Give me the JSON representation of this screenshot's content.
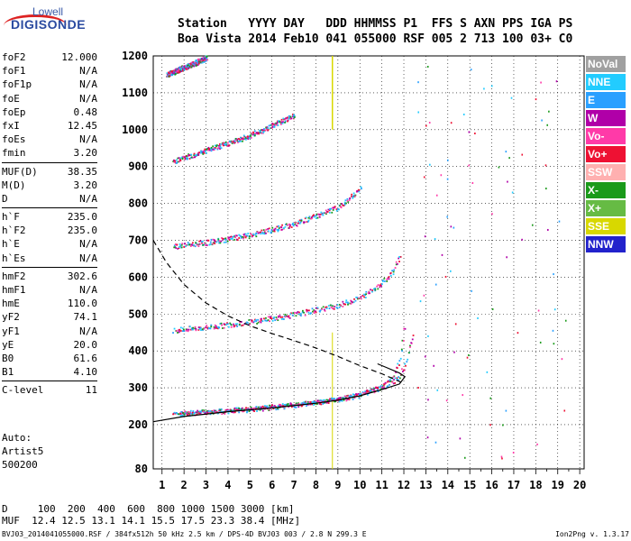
{
  "logo": {
    "line1": "Lowell",
    "line2": "DIGISONDE"
  },
  "header": {
    "line1": "Station   YYYY DAY   DDD HHMMSS P1  FFS S AXN PPS IGA PS",
    "line2": "Boa Vista 2014 Feb10 041 055000 RSF 005 2 713 100 03+ C0"
  },
  "params": [
    [
      {
        "k": "foF2",
        "v": "12.000"
      },
      {
        "k": "foF1",
        "v": "N/A"
      },
      {
        "k": "foF1p",
        "v": "N/A"
      },
      {
        "k": "foE",
        "v": "N/A"
      },
      {
        "k": "foEp",
        "v": "0.48"
      },
      {
        "k": "fxI",
        "v": "12.45"
      },
      {
        "k": "foEs",
        "v": "N/A"
      },
      {
        "k": "fmin",
        "v": "3.20"
      }
    ],
    [
      {
        "k": "MUF(D)",
        "v": "38.35"
      },
      {
        "k": "M(D)",
        "v": "3.20"
      },
      {
        "k": "D",
        "v": "N/A"
      }
    ],
    [
      {
        "k": "h`F",
        "v": "235.0"
      },
      {
        "k": "h`F2",
        "v": "235.0"
      },
      {
        "k": "h`E",
        "v": "N/A"
      },
      {
        "k": "h`Es",
        "v": "N/A"
      }
    ],
    [
      {
        "k": "hmF2",
        "v": "302.6"
      },
      {
        "k": "hmF1",
        "v": "N/A"
      },
      {
        "k": "hmE",
        "v": "110.0"
      },
      {
        "k": "yF2",
        "v": "74.1"
      },
      {
        "k": "yF1",
        "v": "N/A"
      },
      {
        "k": "yE",
        "v": "20.0"
      },
      {
        "k": "B0",
        "v": "61.6"
      },
      {
        "k": "B1",
        "v": "4.10"
      }
    ],
    [
      {
        "k": "C-level",
        "v": "11"
      }
    ]
  ],
  "notes": {
    "l1": "Auto:",
    "l2": "Artist5",
    "l3": "500200"
  },
  "bottom": {
    "d_line": "D     100  200  400  600  800 1000 1500 3000 [km]",
    "muf_line": "MUF  12.4 12.5 13.1 14.1 15.5 17.5 23.3 38.4 [MHz]"
  },
  "footer": {
    "left": "BVJ03_2014041055000.RSF / 384fx512h 50 kHz 2.5 km / DPS-4D BVJ03 003 / 2.8 N 299.3 E",
    "right": "Ion2Png v. 1.3.17"
  },
  "legend": [
    {
      "label": "NoVal",
      "color": "#a0a0a0"
    },
    {
      "label": "NNE",
      "color": "#22ccff"
    },
    {
      "label": "E",
      "color": "#2aa0ff"
    },
    {
      "label": "W",
      "color": "#b000a8"
    },
    {
      "label": "Vo-",
      "color": "#ff3aa8"
    },
    {
      "label": "Vo+",
      "color": "#ee1133"
    },
    {
      "label": "SSW",
      "color": "#ffb0b0"
    },
    {
      "label": "X-",
      "color": "#1a9a1a"
    },
    {
      "label": "X+",
      "color": "#66bb44"
    },
    {
      "label": "SSE",
      "color": "#d8d800"
    },
    {
      "label": "NNW",
      "color": "#2222cc"
    }
  ],
  "chart_data": {
    "type": "scatter",
    "xlim": [
      0.6,
      20.2
    ],
    "ylim": [
      80,
      1200
    ],
    "x_ticks": [
      1,
      2,
      3,
      4,
      5,
      6,
      7,
      8,
      9,
      10,
      11,
      12,
      13,
      14,
      15,
      16,
      17,
      18,
      19,
      20
    ],
    "y_ticks": [
      80,
      200,
      300,
      400,
      500,
      600,
      700,
      800,
      900,
      1000,
      1100,
      1200
    ],
    "grid": true,
    "traces": [
      {
        "name": "O-trace 1",
        "x": [
          1.5,
          3,
          5,
          7,
          9,
          10,
          11,
          11.5,
          11.8,
          12.0
        ],
        "y": [
          232,
          236,
          244,
          256,
          272,
          286,
          308,
          330,
          380,
          460
        ]
      },
      {
        "name": "X-trace 1",
        "x": [
          1.8,
          3,
          5,
          7,
          9,
          10,
          11,
          11.6,
          12.0,
          12.4
        ],
        "y": [
          232,
          235,
          243,
          255,
          270,
          282,
          302,
          322,
          355,
          440
        ]
      },
      {
        "name": "O-trace 2",
        "x": [
          1.5,
          3,
          5,
          7,
          9,
          10,
          11,
          11.5,
          11.8
        ],
        "y": [
          458,
          465,
          480,
          500,
          525,
          545,
          585,
          620,
          660
        ]
      },
      {
        "name": "O-trace 3",
        "x": [
          1.5,
          3,
          5,
          7,
          9,
          10
        ],
        "y": [
          685,
          695,
          715,
          745,
          790,
          840
        ]
      },
      {
        "name": "O-trace 4",
        "x": [
          1.5,
          3,
          5,
          7
        ],
        "y": [
          915,
          945,
          985,
          1040
        ]
      },
      {
        "name": "O-trace 5",
        "x": [
          1.2,
          3
        ],
        "y": [
          1150,
          1195
        ]
      }
    ],
    "profile_solid": {
      "x": [
        0.6,
        2,
        4,
        6,
        8,
        9,
        10,
        11,
        11.8,
        12.05,
        11.8,
        11.2,
        10.8
      ],
      "y": [
        208,
        222,
        235,
        245,
        258,
        266,
        278,
        295,
        310,
        330,
        340,
        355,
        365
      ]
    },
    "profile_dashed": {
      "x": [
        0.6,
        1.2,
        2,
        3,
        4,
        5,
        6,
        7,
        8,
        9,
        10,
        11,
        11.6,
        12.0
      ],
      "y": [
        700,
        640,
        580,
        530,
        495,
        468,
        447,
        428,
        408,
        385,
        360,
        338,
        322,
        312
      ]
    }
  }
}
